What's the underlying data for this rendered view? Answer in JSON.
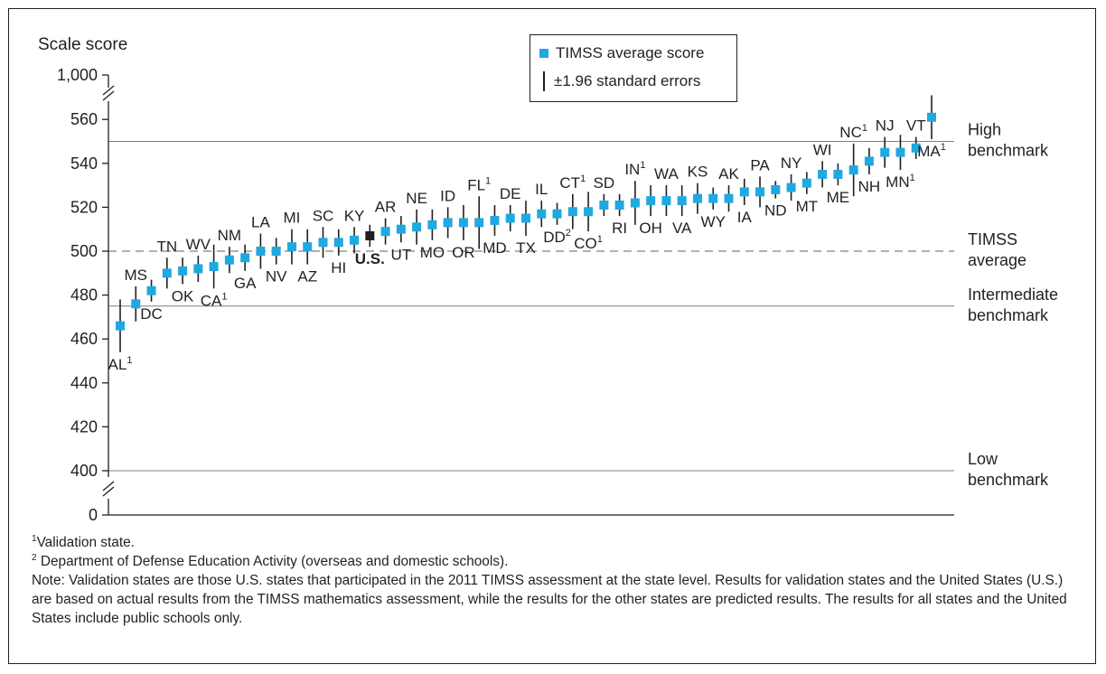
{
  "chart_data": {
    "type": "scatter",
    "ylabel": "Scale score",
    "y_ticks": [
      "0",
      "400",
      "420",
      "440",
      "460",
      "480",
      "500",
      "520",
      "540",
      "560",
      "1,000"
    ],
    "ylim": [
      400,
      565
    ],
    "axis_breaks": true,
    "reference_lines": [
      {
        "value": 550,
        "label": [
          "High",
          "benchmark"
        ],
        "style": "solid"
      },
      {
        "value": 500,
        "label": [
          "TIMSS",
          "average"
        ],
        "style": "dashed"
      },
      {
        "value": 475,
        "label": [
          "Intermediate",
          "benchmark"
        ],
        "style": "solid"
      },
      {
        "value": 400,
        "label": [
          "Low",
          "benchmark"
        ],
        "style": "solid"
      }
    ],
    "legend": {
      "placement": "top",
      "items": [
        "TIMSS average score",
        "±1.96 standard errors"
      ]
    },
    "series": [
      {
        "name": "TIMSS average score",
        "points": [
          {
            "label": "AL",
            "sup": "1",
            "pos": "below",
            "value": 466,
            "se": 12
          },
          {
            "label": "MS",
            "sup": "",
            "pos": "above",
            "value": 476,
            "se": 8
          },
          {
            "label": "DC",
            "sup": "",
            "pos": "below",
            "value": 482,
            "se": 5
          },
          {
            "label": "TN",
            "sup": "",
            "pos": "above",
            "value": 490,
            "se": 7
          },
          {
            "label": "OK",
            "sup": "",
            "pos": "below",
            "value": 491,
            "se": 6
          },
          {
            "label": "WV",
            "sup": "",
            "pos": "above",
            "value": 492,
            "se": 6
          },
          {
            "label": "CA",
            "sup": "1",
            "pos": "below",
            "value": 493,
            "se": 10
          },
          {
            "label": "NM",
            "sup": "",
            "pos": "above",
            "value": 496,
            "se": 6
          },
          {
            "label": "GA",
            "sup": "",
            "pos": "below",
            "value": 497,
            "se": 6
          },
          {
            "label": "LA",
            "sup": "",
            "pos": "above",
            "value": 500,
            "se": 8
          },
          {
            "label": "NV",
            "sup": "",
            "pos": "below",
            "value": 500,
            "se": 6
          },
          {
            "label": "MI",
            "sup": "",
            "pos": "above",
            "value": 502,
            "se": 8
          },
          {
            "label": "AZ",
            "sup": "",
            "pos": "below",
            "value": 502,
            "se": 8
          },
          {
            "label": "SC",
            "sup": "",
            "pos": "above",
            "value": 504,
            "se": 7
          },
          {
            "label": "HI",
            "sup": "",
            "pos": "below",
            "value": 504,
            "se": 6
          },
          {
            "label": "KY",
            "sup": "",
            "pos": "above",
            "value": 505,
            "se": 6
          },
          {
            "label": "U.S.",
            "sup": "",
            "pos": "below",
            "value": 507,
            "se": 5,
            "highlight": true
          },
          {
            "label": "AR",
            "sup": "",
            "pos": "above",
            "value": 509,
            "se": 6
          },
          {
            "label": "UT",
            "sup": "",
            "pos": "below",
            "value": 510,
            "se": 6
          },
          {
            "label": "NE",
            "sup": "",
            "pos": "above",
            "value": 511,
            "se": 8
          },
          {
            "label": "MO",
            "sup": "",
            "pos": "below",
            "value": 512,
            "se": 7
          },
          {
            "label": "ID",
            "sup": "",
            "pos": "above",
            "value": 513,
            "se": 7
          },
          {
            "label": "OR",
            "sup": "",
            "pos": "below",
            "value": 513,
            "se": 8
          },
          {
            "label": "FL",
            "sup": "1",
            "pos": "above",
            "value": 513,
            "se": 12
          },
          {
            "label": "MD",
            "sup": "",
            "pos": "below",
            "value": 514,
            "se": 7
          },
          {
            "label": "DE",
            "sup": "",
            "pos": "above",
            "value": 515,
            "se": 6
          },
          {
            "label": "TX",
            "sup": "",
            "pos": "below",
            "value": 515,
            "se": 8
          },
          {
            "label": "IL",
            "sup": "",
            "pos": "above",
            "value": 517,
            "se": 6
          },
          {
            "label": "DD",
            "sup": "2",
            "pos": "below",
            "value": 517,
            "se": 5
          },
          {
            "label": "CT",
            "sup": "1",
            "pos": "above",
            "value": 518,
            "se": 8
          },
          {
            "label": "CO",
            "sup": "1",
            "pos": "below",
            "value": 518,
            "se": 9
          },
          {
            "label": "SD",
            "sup": "",
            "pos": "above",
            "value": 521,
            "se": 5
          },
          {
            "label": "RI",
            "sup": "",
            "pos": "below",
            "value": 521,
            "se": 5
          },
          {
            "label": "IN",
            "sup": "1",
            "pos": "above",
            "value": 522,
            "se": 10
          },
          {
            "label": "OH",
            "sup": "",
            "pos": "below",
            "value": 523,
            "se": 7
          },
          {
            "label": "WA",
            "sup": "",
            "pos": "above",
            "value": 523,
            "se": 7
          },
          {
            "label": "VA",
            "sup": "",
            "pos": "below",
            "value": 523,
            "se": 7
          },
          {
            "label": "KS",
            "sup": "",
            "pos": "above",
            "value": 524,
            "se": 7
          },
          {
            "label": "WY",
            "sup": "",
            "pos": "below",
            "value": 524,
            "se": 5
          },
          {
            "label": "AK",
            "sup": "",
            "pos": "above",
            "value": 524,
            "se": 6
          },
          {
            "label": "IA",
            "sup": "",
            "pos": "below",
            "value": 527,
            "se": 6
          },
          {
            "label": "PA",
            "sup": "",
            "pos": "above",
            "value": 527,
            "se": 7
          },
          {
            "label": "ND",
            "sup": "",
            "pos": "below",
            "value": 528,
            "se": 4
          },
          {
            "label": "NY",
            "sup": "",
            "pos": "above",
            "value": 529,
            "se": 6
          },
          {
            "label": "MT",
            "sup": "",
            "pos": "below",
            "value": 531,
            "se": 5
          },
          {
            "label": "WI",
            "sup": "",
            "pos": "above",
            "value": 535,
            "se": 6
          },
          {
            "label": "ME",
            "sup": "",
            "pos": "below",
            "value": 535,
            "se": 5
          },
          {
            "label": "NC",
            "sup": "1",
            "pos": "above",
            "value": 537,
            "se": 12
          },
          {
            "label": "NH",
            "sup": "",
            "pos": "below",
            "value": 541,
            "se": 6
          },
          {
            "label": "NJ",
            "sup": "",
            "pos": "above",
            "value": 545,
            "se": 7
          },
          {
            "label": "MN",
            "sup": "1",
            "pos": "below",
            "value": 545,
            "se": 8
          },
          {
            "label": "VT",
            "sup": "",
            "pos": "above",
            "value": 547,
            "se": 5
          },
          {
            "label": "MA",
            "sup": "1",
            "pos": "below",
            "value": 561,
            "se": 10
          }
        ]
      }
    ]
  },
  "notes": {
    "note1_sup": "1",
    "note1": "Validation state.",
    "note2_sup": "2",
    "note2": " Department of Defense Education Activity (overseas and domestic schools).",
    "note3": "Note: Validation states are those U.S. states that participated in the 2011 TIMSS assessment at the state level. Results for validation states and the United States (U.S.) are based on actual results from the TIMSS mathematics assessment, while the results for the other states are predicted results. The results for all states and the United States include public schools only."
  },
  "colors": {
    "marker": "#1fa9e1",
    "highlight_marker": "#231f20",
    "lines": "#231f20",
    "reference": "#808080"
  }
}
